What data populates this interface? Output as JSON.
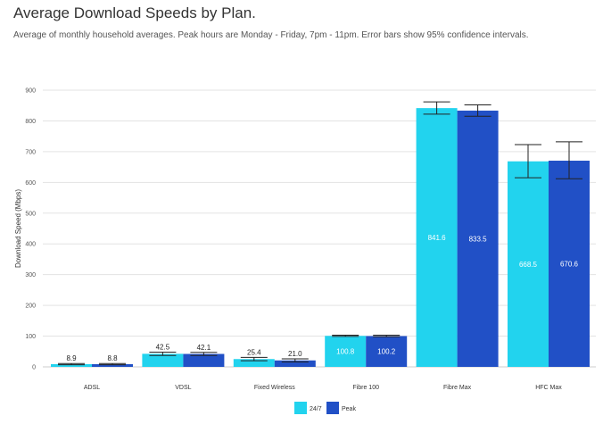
{
  "header": {
    "title": "Average Download Speeds by Plan.",
    "subtitle": "Average of monthly household averages. Peak hours are Monday - Friday, 7pm - 11pm. Error bars show 95% confidence intervals."
  },
  "chart_data": {
    "type": "bar",
    "title": "Average Download Speeds by Plan.",
    "subtitle": "Average of monthly household averages. Peak hours are Monday - Friday, 7pm - 11pm. Error bars show 95% confidence intervals.",
    "xlabel": "",
    "ylabel": "Download Speed (Mbps)",
    "ylim": [
      0,
      900
    ],
    "yticks": [
      0,
      100,
      200,
      300,
      400,
      500,
      600,
      700,
      800,
      900
    ],
    "grid": true,
    "legend_position": "bottom-center",
    "categories": [
      "ADSL",
      "VDSL",
      "Fixed Wireless",
      "Fibre 100",
      "Fibre Max",
      "HFC Max"
    ],
    "series": [
      {
        "name": "24/7",
        "color": "#22d3ee",
        "values": [
          8.9,
          42.5,
          25.4,
          100.8,
          841.6,
          668.5
        ],
        "labels": [
          "8.9",
          "42.5",
          "25.4",
          "100.8",
          "841.6",
          "668.5"
        ],
        "error_low": [
          7,
          37,
          20,
          99,
          822,
          615
        ],
        "error_high": [
          11,
          48,
          31,
          103,
          862,
          723
        ]
      },
      {
        "name": "Peak",
        "color": "#2150c6",
        "values": [
          8.8,
          42.1,
          21.0,
          100.2,
          833.5,
          670.6
        ],
        "labels": [
          "8.8",
          "42.1",
          "21.0",
          "100.2",
          "833.5",
          "670.6"
        ],
        "error_low": [
          7,
          37,
          16,
          98,
          815,
          612
        ],
        "error_high": [
          11,
          47,
          26,
          103,
          852,
          732
        ]
      }
    ]
  }
}
